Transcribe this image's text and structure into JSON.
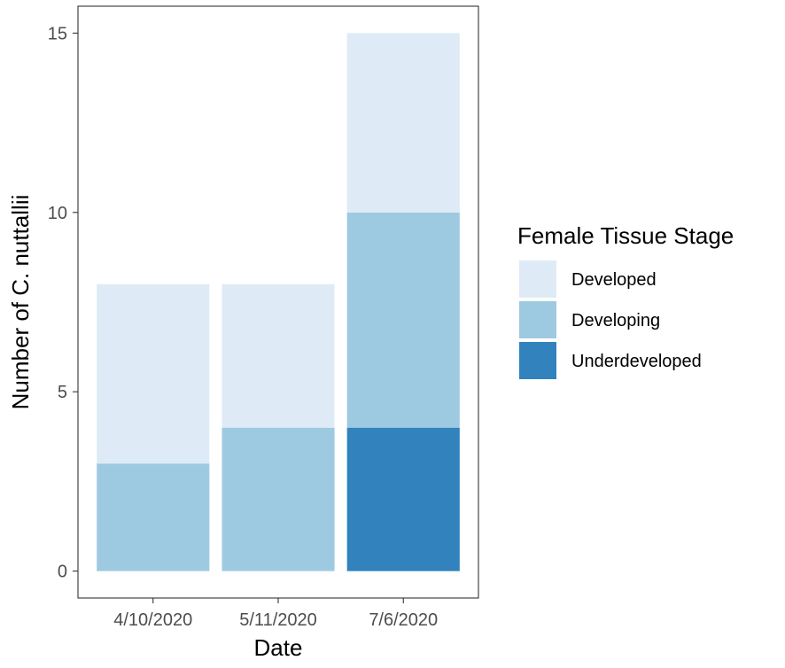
{
  "chart_data": {
    "type": "bar",
    "stacked": true,
    "categories": [
      "4/10/2020",
      "5/11/2020",
      "7/6/2020"
    ],
    "series": [
      {
        "name": "Underdeveloped",
        "values": [
          0,
          0,
          4
        ],
        "color": "#3182bd"
      },
      {
        "name": "Developing",
        "values": [
          3,
          4,
          6
        ],
        "color": "#9ecae1"
      },
      {
        "name": "Developed",
        "values": [
          5,
          4,
          5
        ],
        "color": "#deebf7"
      }
    ],
    "xlabel": "Date",
    "ylabel": "Number of C. nuttallii",
    "ylim": [
      -0.75,
      15.75
    ],
    "yticks": [
      0,
      5,
      10,
      15
    ],
    "grid": false,
    "legend": {
      "title": "Female Tissue Stage",
      "placement": "right",
      "order": [
        "Developed",
        "Developing",
        "Underdeveloped"
      ]
    }
  }
}
